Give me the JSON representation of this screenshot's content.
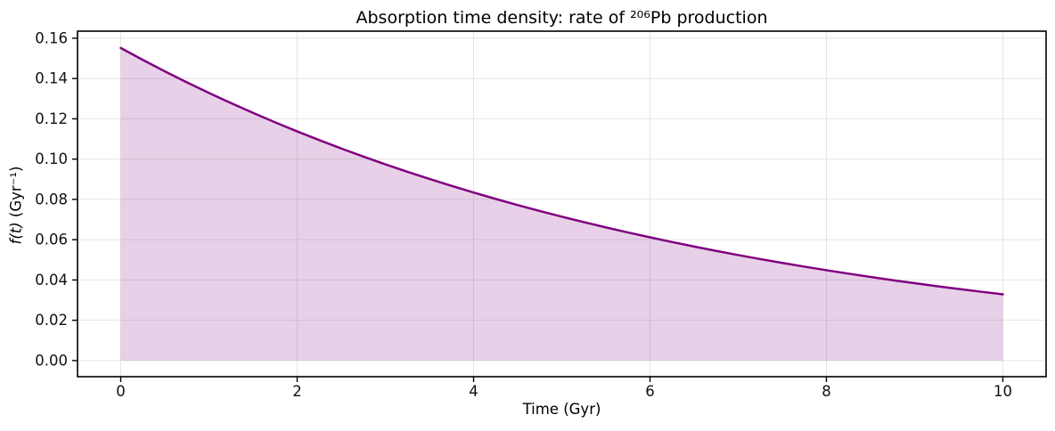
{
  "figure": {
    "title": "Absorption time density: rate of ²⁰⁶Pb production",
    "xlabel": "Time (Gyr)",
    "ylabel_math": "f(t)",
    "ylabel_unit": " (Gyr⁻¹)"
  },
  "chart_data": {
    "type": "area",
    "title": "Absorption time density: rate of ²⁰⁶Pb production",
    "xlabel": "Time (Gyr)",
    "ylabel": "f(t) (Gyr⁻¹)",
    "x": [
      0,
      0.25,
      0.5,
      0.75,
      1,
      1.25,
      1.5,
      1.75,
      2,
      2.25,
      2.5,
      2.75,
      3,
      3.25,
      3.5,
      3.75,
      4,
      4.25,
      4.5,
      4.75,
      5,
      5.25,
      5.5,
      5.75,
      6,
      6.25,
      6.5,
      6.75,
      7,
      7.25,
      7.5,
      7.75,
      8,
      8.25,
      8.5,
      8.75,
      9,
      9.25,
      9.5,
      9.75,
      10
    ],
    "y": [
      0.15514,
      0.14924,
      0.14356,
      0.1381,
      0.13284,
      0.12779,
      0.12293,
      0.11825,
      0.11375,
      0.10943,
      0.10527,
      0.10126,
      0.09741,
      0.0937,
      0.09014,
      0.08671,
      0.08341,
      0.08024,
      0.07719,
      0.07425,
      0.07143,
      0.06871,
      0.06609,
      0.06358,
      0.06116,
      0.05883,
      0.0566,
      0.05444,
      0.05237,
      0.05038,
      0.04846,
      0.04662,
      0.04485,
      0.04314,
      0.0415,
      0.03992,
      0.0384,
      0.03694,
      0.03554,
      0.03418,
      0.03288
    ],
    "baseline": 0,
    "xlim": [
      -0.49,
      10.49
    ],
    "ylim": [
      -0.008,
      0.1635
    ],
    "xticks": [
      0,
      2,
      4,
      6,
      8,
      10
    ],
    "yticks": [
      0.0,
      0.02,
      0.04,
      0.06,
      0.08,
      0.1,
      0.12,
      0.14,
      0.16
    ],
    "grid": true,
    "legend": "none",
    "line_color": "#800080",
    "fill_color": "rgba(128,0,128,0.18)",
    "grid_color": "#e4e4e4",
    "frame_color": "#000000"
  }
}
